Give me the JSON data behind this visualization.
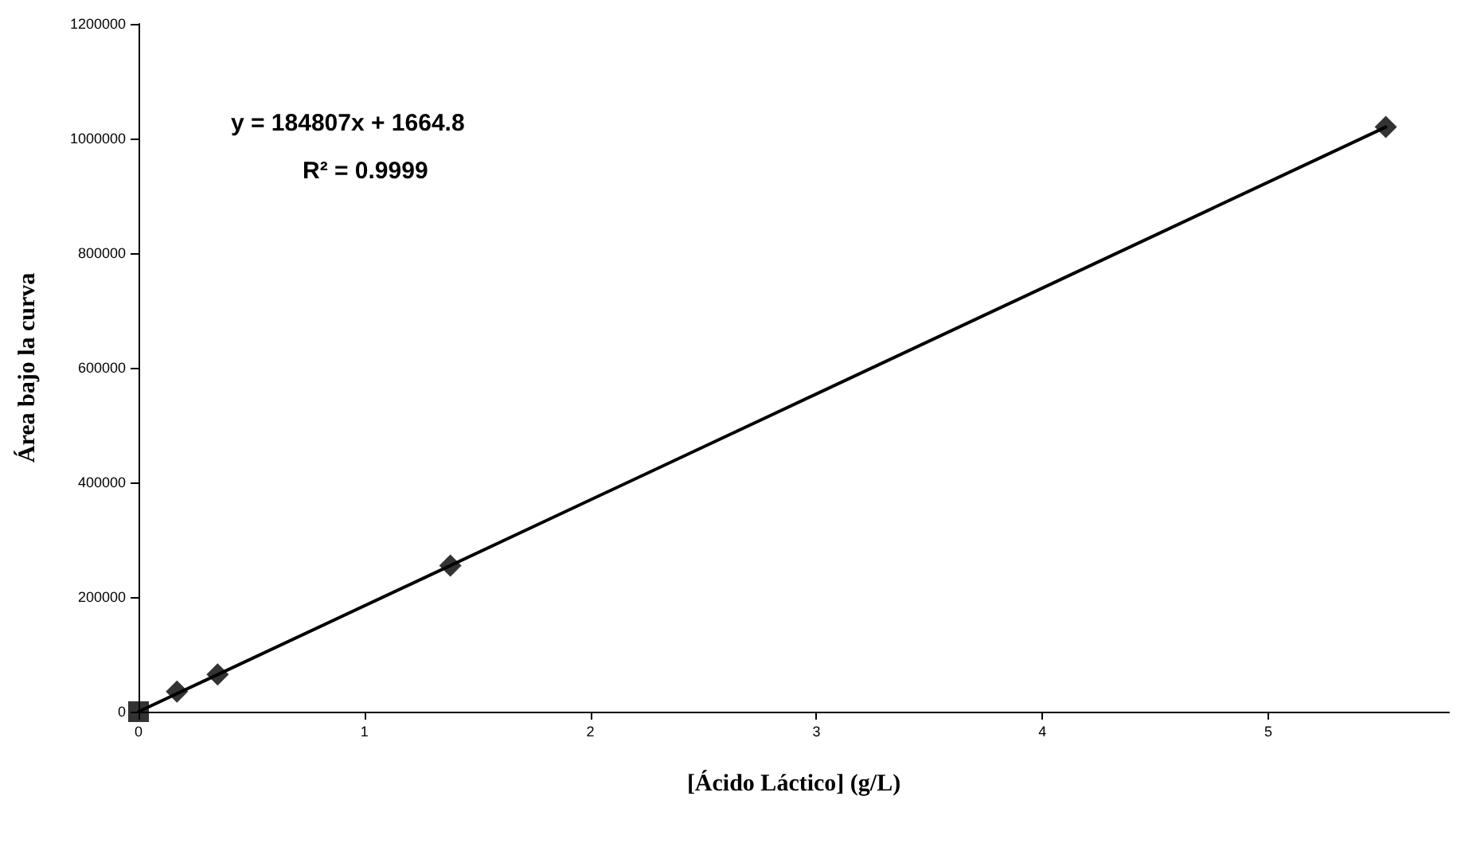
{
  "chart_data": {
    "type": "scatter",
    "xlabel": "[Ácido Láctico] (g/L)",
    "ylabel": "Área bajo la curva",
    "annotations": [
      "y = 184807x + 1664.8",
      "R² = 0.9999"
    ],
    "series": [
      {
        "type": "line",
        "color": "#000000",
        "x": [
          0,
          5.52
        ],
        "values": [
          0,
          1020000
        ],
        "marker": "none",
        "line_style": "solid"
      },
      {
        "color": "#000000",
        "x": [
          0.17,
          0.35,
          1.38,
          5.52
        ],
        "values": [
          35000,
          65000,
          255000,
          1020000
        ],
        "marker": "diamond"
      },
      {
        "color": "#000000",
        "x": [
          0
        ],
        "values": [
          0
        ],
        "marker": "square"
      }
    ],
    "xlim": [
      0,
      5.8
    ],
    "xticks": [
      0,
      1,
      2,
      3,
      4,
      5
    ],
    "ylim": [
      0,
      1200000
    ],
    "yticks": [
      0,
      200000,
      400000,
      600000,
      800000,
      1000000,
      1200000
    ],
    "grid": false
  }
}
